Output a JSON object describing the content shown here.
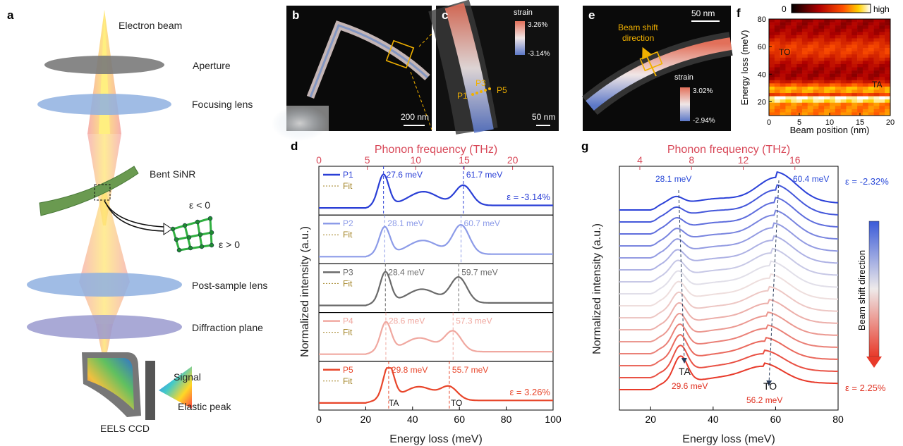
{
  "panel_letters": {
    "a": "a",
    "b": "b",
    "c": "c",
    "d": "d",
    "e": "e",
    "f": "f",
    "g": "g"
  },
  "panel_a": {
    "labels": [
      "Electron beam",
      "Aperture",
      "Focusing lens",
      "Bent SiNR",
      "Post-sample lens",
      "Diffraction plane",
      "Signal",
      "Elastic peak",
      "EELS CCD"
    ],
    "strain_neg": "ε < 0",
    "strain_pos": "ε > 0"
  },
  "panel_b": {
    "scale": "200 nm"
  },
  "panel_c": {
    "scale": "50 nm",
    "legend_title": "strain",
    "legend_max": "3.26%",
    "legend_min": "-3.14%",
    "points": [
      "P1",
      "P3",
      "P5"
    ]
  },
  "panel_e": {
    "scale": "50 nm",
    "arrow_text_1": "Beam shift",
    "arrow_text_2": "direction",
    "legend_title": "strain",
    "legend_max": "3.02%",
    "legend_min": "-2.94%"
  },
  "panel_f": {
    "cbar_min": "0",
    "cbar_max": "high",
    "xlabel": "Beam position (nm)",
    "ylabel": "Energy loss (meV)",
    "xticks": [
      "0",
      "5",
      "10",
      "15",
      "20"
    ],
    "yticks": [
      "20",
      "40",
      "60",
      "80"
    ],
    "labels": {
      "to": "TO",
      "ta": "TA"
    }
  },
  "chart_data": [
    {
      "id": "f",
      "type": "heatmap",
      "xlabel": "Beam position (nm)",
      "ylabel": "Energy loss (meV)",
      "xlim": [
        0,
        20
      ],
      "ylim": [
        10,
        80
      ],
      "bands": [
        {
          "name": "TA",
          "center_meV": 29
        },
        {
          "name": "TO",
          "center_meV": 58
        }
      ],
      "colorbar": [
        "0",
        "high"
      ]
    },
    {
      "id": "d",
      "type": "line",
      "xlabel": "Energy loss (meV)",
      "ylabel": "Normalized intensity (a.u.)",
      "top_label": "Phonon frequency (THz)",
      "xlim": [
        0,
        100
      ],
      "xticks": [
        "0",
        "20",
        "40",
        "60",
        "80",
        "100"
      ],
      "top_ticks": [
        "0",
        "5",
        "10",
        "15",
        "20"
      ],
      "series": [
        {
          "name": "P1",
          "color": "#2a3fd6",
          "ta": 27.6,
          "to": 61.7,
          "ta_label": "27.6 meV",
          "to_label": "61.7 meV",
          "ta_h": 0.85,
          "to_h": 0.55,
          "strain": "ε = -3.14%"
        },
        {
          "name": "P2",
          "color": "#8c9be8",
          "ta": 28.1,
          "to": 60.7,
          "ta_label": "28.1 meV",
          "to_label": "60.7 meV",
          "ta_h": 0.75,
          "to_h": 0.8,
          "strain": ""
        },
        {
          "name": "P3",
          "color": "#6a6a6a",
          "ta": 28.4,
          "to": 59.7,
          "ta_label": "28.4 meV",
          "to_label": "59.7 meV",
          "ta_h": 0.85,
          "to_h": 0.7,
          "strain": ""
        },
        {
          "name": "P4",
          "color": "#f0a8a0",
          "ta": 28.6,
          "to": 57.3,
          "ta_label": "28.6 meV",
          "to_label": "57.3 meV",
          "ta_h": 0.8,
          "to_h": 0.55,
          "strain": ""
        },
        {
          "name": "P5",
          "color": "#e8452a",
          "ta": 29.8,
          "to": 55.7,
          "ta_label": "29.8 meV",
          "to_label": "55.7 meV",
          "ta_h": 0.95,
          "to_h": 0.35,
          "strain": "ε = 3.26%"
        }
      ],
      "fit_label": "Fit",
      "mode_labels": {
        "ta": "TA",
        "to": "TO"
      }
    },
    {
      "id": "g",
      "type": "line",
      "xlabel": "Energy loss (meV)",
      "ylabel": "Normalized intensity (a.u.)",
      "top_label": "Phonon frequency (THz)",
      "xlim": [
        10,
        80
      ],
      "xticks": [
        "20",
        "40",
        "60",
        "80"
      ],
      "top_ticks": [
        "4",
        "8",
        "12",
        "16"
      ],
      "n_curves": 16,
      "top_ta": "28.1 meV",
      "top_to": "60.4 meV",
      "bot_ta": "29.6 meV",
      "bot_to": "56.2 meV",
      "strain_top": "ε = -2.32%",
      "strain_bot": "ε = 2.25%",
      "colorbar_label": "Beam shift direction",
      "mode_labels": {
        "ta": "TA",
        "to": "TO"
      }
    }
  ]
}
